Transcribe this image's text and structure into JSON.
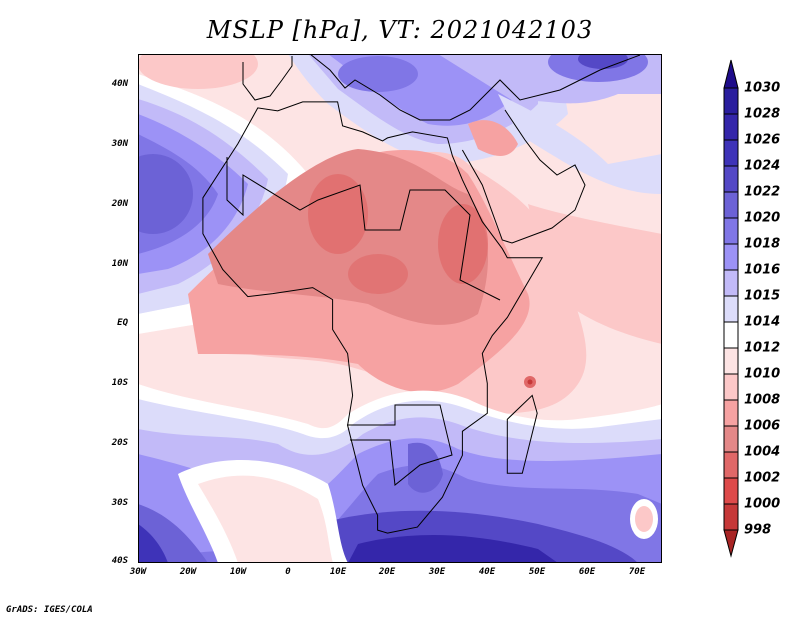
{
  "title": "MSLP [hPa], VT: 2021042103",
  "credit": "GrADS: IGES/COLA",
  "axes": {
    "lat_ticks": [
      "40N",
      "30N",
      "20N",
      "10N",
      "EQ",
      "10S",
      "20S",
      "30S",
      "40S"
    ],
    "lon_ticks": [
      "30W",
      "20W",
      "10W",
      "0",
      "10E",
      "20E",
      "30E",
      "40E",
      "50E",
      "60E",
      "70E"
    ]
  },
  "colorbar": {
    "labels": [
      "1030",
      "1028",
      "1026",
      "1024",
      "1022",
      "1020",
      "1018",
      "1016",
      "1015",
      "1014",
      "1012",
      "1010",
      "1008",
      "1006",
      "1004",
      "1002",
      "1000",
      "998"
    ],
    "over_color": "#1e0c8a",
    "under_color": "#a82424",
    "colors": [
      "#2a1e9e",
      "#3426aa",
      "#3e33b8",
      "#5448c6",
      "#6c62d6",
      "#8076e6",
      "#9c92f6",
      "#c2baf8",
      "#dcdcfa",
      "#ffffff",
      "#fde4e4",
      "#fcc8c8",
      "#f6a2a2",
      "#e48888",
      "#e06868",
      "#de4a4a",
      "#c63838"
    ]
  }
}
